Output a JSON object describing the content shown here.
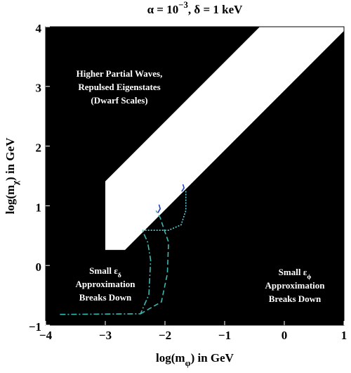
{
  "chart_data": {
    "type": "region",
    "title": {
      "text": "α = 10",
      "sup": "−3",
      "tail": ",  δ = 1 keV"
    },
    "xlabel": {
      "text": "log(m",
      "sub": "φ",
      "tail": ") in GeV"
    },
    "ylabel": {
      "text": "log(m",
      "sub": "χ",
      "tail": ") in GeV"
    },
    "xlim": [
      -4,
      1
    ],
    "ylim": [
      -1,
      4
    ],
    "xticks": [
      {
        "value": -4,
        "label": "−4"
      },
      {
        "value": -3,
        "label": "−3"
      },
      {
        "value": -2,
        "label": "−2"
      },
      {
        "value": -1,
        "label": "−1"
      },
      0,
      1
    ],
    "yticks": [
      {
        "value": -1,
        "label": "−1"
      },
      0,
      1,
      2,
      3,
      4
    ],
    "background": "#000000",
    "regions": [
      {
        "color": "#ffffff",
        "x": [
          -3,
          -3,
          -2.67,
          1,
          1,
          -0.41
        ],
        "y": [
          1.41,
          0.26,
          0.26,
          3.93,
          4,
          4
        ]
      }
    ],
    "series": [
      {
        "color": "#3cb8b0",
        "style": "dashdot",
        "x": [
          -3.76,
          -2.41,
          -2.27,
          -2.24,
          -2.29,
          -2.38
        ],
        "y": [
          -0.82,
          -0.81,
          -0.49,
          0.09,
          0.39,
          0.59
        ]
      },
      {
        "color": "#3cb8b0",
        "style": "dashed",
        "x": [
          -2.41,
          -2.06,
          -1.96,
          -1.94,
          -2.0,
          -2.08,
          -2.15
        ],
        "y": [
          -0.81,
          -0.61,
          -0.14,
          0.39,
          0.56,
          0.8,
          0.92
        ]
      },
      {
        "color": "#5fd0d8",
        "style": "dotted",
        "x": [
          -2.38,
          -1.94,
          -1.73,
          -1.65,
          -1.65
        ],
        "y": [
          0.59,
          0.59,
          0.68,
          0.92,
          1.27
        ]
      },
      {
        "color": "#2040d0",
        "style": "solid",
        "x": [
          -2.12,
          -2.08,
          -2.1
        ],
        "y": [
          0.88,
          0.95,
          1.02
        ]
      },
      {
        "color": "#2040d0",
        "style": "solid",
        "x": [
          -1.72,
          -1.68,
          -1.7
        ],
        "y": [
          1.24,
          1.3,
          1.36
        ]
      }
    ],
    "annotations": [
      {
        "lines": [
          {
            "text": "Higher Partial Waves,"
          },
          {
            "text": "Repulsed Eigenstates"
          },
          {
            "text": "(Dwarf Scales)"
          }
        ]
      },
      {
        "lines": [
          {
            "text": "Small ε",
            "sub": "δ"
          },
          {
            "text": "Approximation"
          },
          {
            "text": "Breaks Down"
          }
        ]
      },
      {
        "lines": [
          {
            "text": "Small ε",
            "sub": "ϕ"
          },
          {
            "text": "Approximation"
          },
          {
            "text": "Breaks Down"
          }
        ]
      }
    ]
  }
}
